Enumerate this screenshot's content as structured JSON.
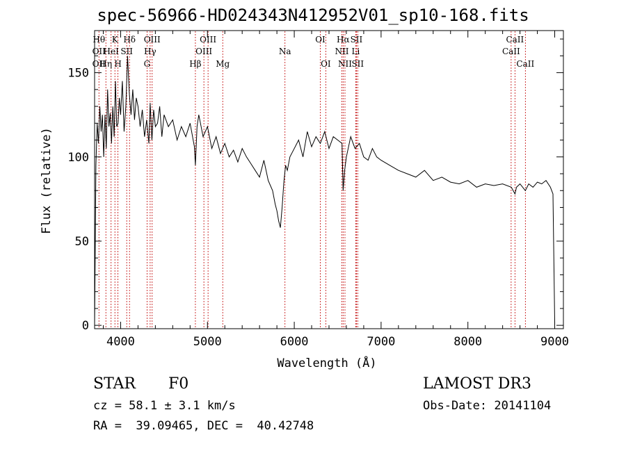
{
  "chart_data": {
    "type": "line",
    "title": "spec-56966-HD024343N412952V01_sp10-168.fits",
    "xlabel": "Wavelength (Å)",
    "ylabel": "Flux (relative)",
    "xlim": [
      3700,
      9100
    ],
    "ylim": [
      -2,
      175
    ],
    "xticks": [
      4000,
      5000,
      6000,
      7000,
      8000,
      9000
    ],
    "yticks": [
      0,
      50,
      100,
      150
    ],
    "series": [
      {
        "x": [
          3700,
          3715,
          3730,
          3745,
          3760,
          3775,
          3790,
          3805,
          3820,
          3835,
          3850,
          3865,
          3880,
          3895,
          3910,
          3925,
          3940,
          3955,
          3970,
          3985,
          4000,
          4020,
          4040,
          4060,
          4080,
          4100,
          4120,
          4140,
          4160,
          4180,
          4200,
          4225,
          4250,
          4275,
          4300,
          4325,
          4340,
          4360,
          4380,
          4400,
          4425,
          4450,
          4475,
          4500,
          4550,
          4600,
          4650,
          4700,
          4750,
          4800,
          4850,
          4861,
          4880,
          4900,
          4950,
          5000,
          5050,
          5100,
          5150,
          5200,
          5250,
          5300,
          5350,
          5400,
          5450,
          5500,
          5550,
          5600,
          5650,
          5700,
          5750,
          5780,
          5800,
          5820,
          5840,
          5860,
          5880,
          5900,
          5920,
          5950,
          6000,
          6050,
          6100,
          6150,
          6200,
          6250,
          6300,
          6350,
          6400,
          6450,
          6500,
          6550,
          6563,
          6580,
          6600,
          6650,
          6700,
          6750,
          6800,
          6850,
          6900,
          6950,
          7000,
          7100,
          7200,
          7300,
          7400,
          7500,
          7600,
          7700,
          7800,
          7900,
          8000,
          8100,
          8200,
          8300,
          8400,
          8500,
          8542,
          8560,
          8600,
          8662,
          8700,
          8750,
          8800,
          8850,
          8900,
          8950,
          8980,
          9000
        ],
        "values": [
          0,
          95,
          120,
          108,
          130,
          115,
          125,
          100,
          125,
          105,
          140,
          118,
          126,
          108,
          130,
          112,
          145,
          118,
          120,
          135,
          125,
          145,
          115,
          130,
          160,
          138,
          125,
          140,
          122,
          135,
          130,
          118,
          128,
          112,
          122,
          108,
          132,
          110,
          128,
          118,
          120,
          130,
          112,
          125,
          118,
          122,
          110,
          118,
          112,
          120,
          106,
          95,
          118,
          125,
          112,
          118,
          105,
          112,
          102,
          108,
          100,
          104,
          97,
          105,
          100,
          96,
          92,
          88,
          98,
          86,
          80,
          72,
          68,
          62,
          58,
          70,
          85,
          95,
          92,
          100,
          105,
          110,
          100,
          115,
          106,
          112,
          108,
          115,
          105,
          112,
          110,
          108,
          80,
          92,
          100,
          112,
          105,
          108,
          100,
          98,
          105,
          100,
          98,
          95,
          92,
          90,
          88,
          92,
          86,
          88,
          85,
          84,
          86,
          82,
          84,
          83,
          84,
          82,
          78,
          82,
          84,
          80,
          84,
          82,
          85,
          84,
          86,
          82,
          78,
          2
        ],
        "line_width": 1
      }
    ],
    "lines": [
      {
        "x": 3750,
        "labels": [
          "Hθ",
          "OII",
          "OII"
        ]
      },
      {
        "x": 3830,
        "labels": [
          "",
          "",
          "Hη"
        ]
      },
      {
        "x": 3890,
        "labels": [
          "",
          "HeI",
          ""
        ]
      },
      {
        "x": 3934,
        "labels": [
          "K",
          "",
          ""
        ]
      },
      {
        "x": 3969,
        "labels": [
          "",
          "",
          "H"
        ]
      },
      {
        "x": 4070,
        "labels": [
          "",
          "SII",
          ""
        ]
      },
      {
        "x": 4102,
        "labels": [
          "Hδ",
          "",
          ""
        ]
      },
      {
        "x": 4304,
        "labels": [
          "",
          "",
          "G"
        ]
      },
      {
        "x": 4340,
        "labels": [
          "",
          "Hγ",
          ""
        ]
      },
      {
        "x": 4363,
        "labels": [
          "OIII",
          "",
          ""
        ]
      },
      {
        "x": 4861,
        "labels": [
          "",
          "",
          "Hβ"
        ]
      },
      {
        "x": 4959,
        "labels": [
          "",
          "OIII",
          ""
        ]
      },
      {
        "x": 5007,
        "labels": [
          "OIII",
          "",
          ""
        ]
      },
      {
        "x": 5176,
        "labels": [
          "",
          "",
          "Mg"
        ]
      },
      {
        "x": 5893,
        "labels": [
          "",
          "Na",
          ""
        ]
      },
      {
        "x": 6300,
        "labels": [
          "OI",
          "",
          ""
        ]
      },
      {
        "x": 6363,
        "labels": [
          "",
          "",
          "OI"
        ]
      },
      {
        "x": 6548,
        "labels": [
          "",
          "NII",
          ""
        ]
      },
      {
        "x": 6563,
        "labels": [
          "Hα",
          "",
          ""
        ]
      },
      {
        "x": 6584,
        "labels": [
          "",
          "",
          "NII"
        ]
      },
      {
        "x": 6708,
        "labels": [
          "",
          "Li",
          ""
        ]
      },
      {
        "x": 6716,
        "labels": [
          "SII",
          "",
          ""
        ]
      },
      {
        "x": 6731,
        "labels": [
          "",
          "",
          "SII"
        ]
      },
      {
        "x": 8498,
        "labels": [
          "",
          "CaII",
          ""
        ]
      },
      {
        "x": 8542,
        "labels": [
          "CaII",
          "",
          ""
        ]
      },
      {
        "x": 8662,
        "labels": [
          "",
          "",
          "CaII"
        ]
      }
    ],
    "grid": false,
    "legend": "none"
  },
  "info": {
    "class": "STAR",
    "subclass": "F0",
    "cz": "cz = 58.1 ± 3.1 km/s",
    "radec": "RA =  39.09465, DEC =  40.42748",
    "survey": "LAMOST DR3",
    "obsdate": "Obs-Date: 20141104"
  },
  "colors": {
    "line_marker": "#c00000",
    "spectrum": "#000000"
  }
}
